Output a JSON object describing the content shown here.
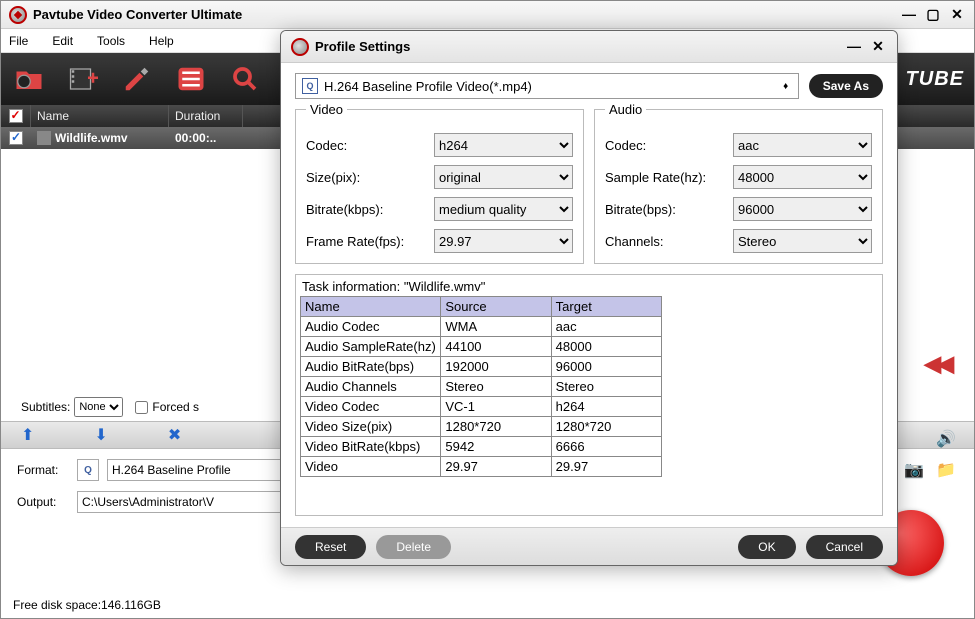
{
  "mainWindow": {
    "title": "Pavtube Video Converter Ultimate",
    "menus": {
      "file": "File",
      "edit": "Edit",
      "tools": "Tools",
      "help": "Help"
    },
    "brand": "TUBE",
    "listHeader": {
      "name": "Name",
      "duration": "Duration"
    },
    "file": {
      "name": "Wildlife.wmv",
      "duration": "00:00:.."
    },
    "subtitles": {
      "label": "Subtitles:",
      "option": "None",
      "forced": "Forced s"
    },
    "format": {
      "label": "Format:",
      "value": "H.264 Baseline Profile"
    },
    "output": {
      "label": "Output:",
      "value": "C:\\Users\\Administrator\\V"
    },
    "diskSpace": "Free disk space:146.116GB"
  },
  "dialog": {
    "title": "Profile Settings",
    "profile": "H.264 Baseline Profile Video(*.mp4)",
    "saveAs": "Save As",
    "video": {
      "legend": "Video",
      "codec": {
        "label": "Codec:",
        "value": "h264"
      },
      "size": {
        "label": "Size(pix):",
        "value": "original"
      },
      "bitrate": {
        "label": "Bitrate(kbps):",
        "value": "medium quality"
      },
      "framerate": {
        "label": "Frame Rate(fps):",
        "value": "29.97"
      }
    },
    "audio": {
      "legend": "Audio",
      "codec": {
        "label": "Codec:",
        "value": "aac"
      },
      "samplerate": {
        "label": "Sample Rate(hz):",
        "value": "48000"
      },
      "bitrate": {
        "label": "Bitrate(bps):",
        "value": "96000"
      },
      "channels": {
        "label": "Channels:",
        "value": "Stereo"
      }
    },
    "task": {
      "label": "Task information: \"Wildlife.wmv\"",
      "columns": {
        "name": "Name",
        "source": "Source",
        "target": "Target"
      },
      "rows": [
        {
          "name": "Audio Codec",
          "source": "WMA",
          "target": "aac"
        },
        {
          "name": "Audio SampleRate(hz)",
          "source": "44100",
          "target": "48000"
        },
        {
          "name": "Audio BitRate(bps)",
          "source": "192000",
          "target": "96000"
        },
        {
          "name": "Audio Channels",
          "source": "Stereo",
          "target": "Stereo"
        },
        {
          "name": "Video Codec",
          "source": "VC-1",
          "target": "h264"
        },
        {
          "name": "Video Size(pix)",
          "source": "1280*720",
          "target": "1280*720"
        },
        {
          "name": "Video BitRate(kbps)",
          "source": "5942",
          "target": "6666"
        },
        {
          "name": "Video",
          "source": "29.97",
          "target": "29.97"
        }
      ]
    },
    "buttons": {
      "reset": "Reset",
      "delete": "Delete",
      "ok": "OK",
      "cancel": "Cancel"
    }
  }
}
